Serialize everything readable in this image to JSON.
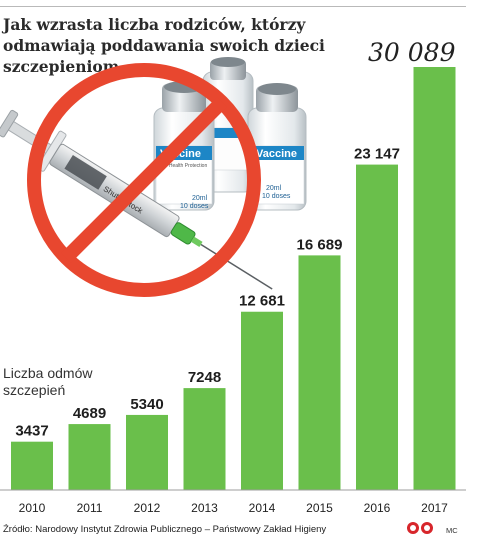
{
  "chart_data": {
    "type": "bar",
    "title": "Jak wzrasta liczba rodziców, którzy odmawiają poddawania swoich dzieci szczepieniom",
    "ylabel": "Liczba odmów szczepień",
    "xlabel": "",
    "categories": [
      "2010",
      "2011",
      "2012",
      "2013",
      "2014",
      "2015",
      "2016",
      "2017"
    ],
    "values": [
      3437,
      4689,
      5340,
      7248,
      12681,
      16689,
      23147,
      30089
    ],
    "value_labels": [
      "3437",
      "4689",
      "5340",
      "7248",
      "12 681",
      "16 689",
      "23 147",
      "30 089"
    ],
    "ylim": [
      0,
      31500
    ],
    "grid": false,
    "bar_color": "#6abf4b"
  },
  "illustration": {
    "icons": [
      "syringe-icon",
      "vaccine-vial-icon",
      "prohibition-sign-icon"
    ],
    "vial_label": "Vaccine",
    "vial_sublabel": "For Health Protection",
    "vial_dose_1": "20ml",
    "vial_dose_2": "10 doses",
    "watermark": "Shutterstock",
    "prohibition_color": "#e8472f"
  },
  "footer": {
    "source": "Źródło: Narodowy Instytut Zdrowia Publicznego – Państwowy Zakład Higieny",
    "credit": "MC",
    "logo": "pap-logo-icon"
  }
}
